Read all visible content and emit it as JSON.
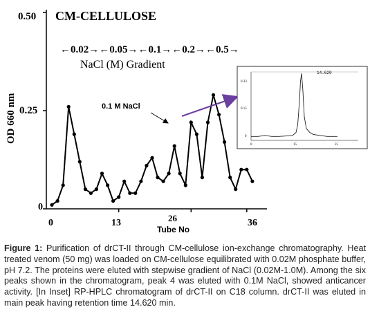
{
  "chart_data": [
    {
      "type": "line",
      "title": "CM-CELLULOSE",
      "gradient_steps": "←0.02→←0.05→←0.1→←0.2→←0.5→",
      "gradient_label": "NaCl  (M) Gradient",
      "xlabel": "Tube No",
      "ylabel": "OD 660 nm",
      "xlim": [
        0,
        38
      ],
      "ylim": [
        0,
        0.5
      ],
      "x_ticks": [
        "0",
        "13",
        "26",
        "36"
      ],
      "y_ticks": [
        "0",
        "0.25",
        "0.50"
      ],
      "grid": false,
      "annotation": "0.1 M NaCl",
      "series": [
        {
          "x": [
            1,
            2,
            3,
            4,
            5,
            6,
            7,
            8,
            9,
            10,
            11,
            12,
            13,
            14,
            15,
            16,
            17,
            18,
            19,
            20,
            21,
            22,
            23,
            24,
            25,
            26,
            27,
            28,
            29,
            30,
            31,
            32,
            33,
            34,
            35,
            36,
            37
          ],
          "y": [
            0.01,
            0.02,
            0.06,
            0.26,
            0.19,
            0.12,
            0.05,
            0.04,
            0.05,
            0.09,
            0.06,
            0.02,
            0.03,
            0.07,
            0.04,
            0.04,
            0.07,
            0.11,
            0.13,
            0.08,
            0.07,
            0.09,
            0.16,
            0.09,
            0.06,
            0.22,
            0.19,
            0.08,
            0.22,
            0.29,
            0.24,
            0.17,
            0.08,
            0.05,
            0.1,
            0.1,
            0.07
          ]
        }
      ]
    },
    {
      "type": "line",
      "inset": true,
      "peak_label": "14.620",
      "y_ticks": [
        "0.33",
        "0.15",
        "0"
      ],
      "x_ticks": [
        "0",
        "15",
        "25"
      ],
      "series": [
        {
          "x": [
            0,
            2,
            4,
            6,
            8,
            10,
            12,
            13,
            13.5,
            14,
            14.3,
            14.62,
            15,
            15.4,
            16,
            17,
            18,
            20,
            22,
            25
          ],
          "y": [
            0.02,
            0.02,
            0.025,
            0.02,
            0.02,
            0.022,
            0.025,
            0.04,
            0.08,
            0.2,
            0.3,
            0.34,
            0.25,
            0.12,
            0.06,
            0.04,
            0.03,
            0.025,
            0.02,
            0.02
          ]
        }
      ]
    }
  ],
  "caption": {
    "label": "Figure 1:",
    "text": " Purification of drCT-II through CM-cellulose ion-exchange chromatography. Heat treated venom (50 mg) was loaded on CM-cellulose equilibrated with 0.02M phosphate buffer, pH 7.2. The proteins were eluted with stepwise gradient of NaCl (0.02M-1.0M). Among the six peaks shown in the chromatogram, peak 4 was eluted with 0.1M NaCl, showed anticancer activity. [In Inset] RP-HPLC chromatogram of drCT-II on C18 column. drCT-II was eluted in main peak having retention time 14.620 min."
  },
  "colors": {
    "arrow": "#6b3fa0",
    "line": "#000000"
  }
}
